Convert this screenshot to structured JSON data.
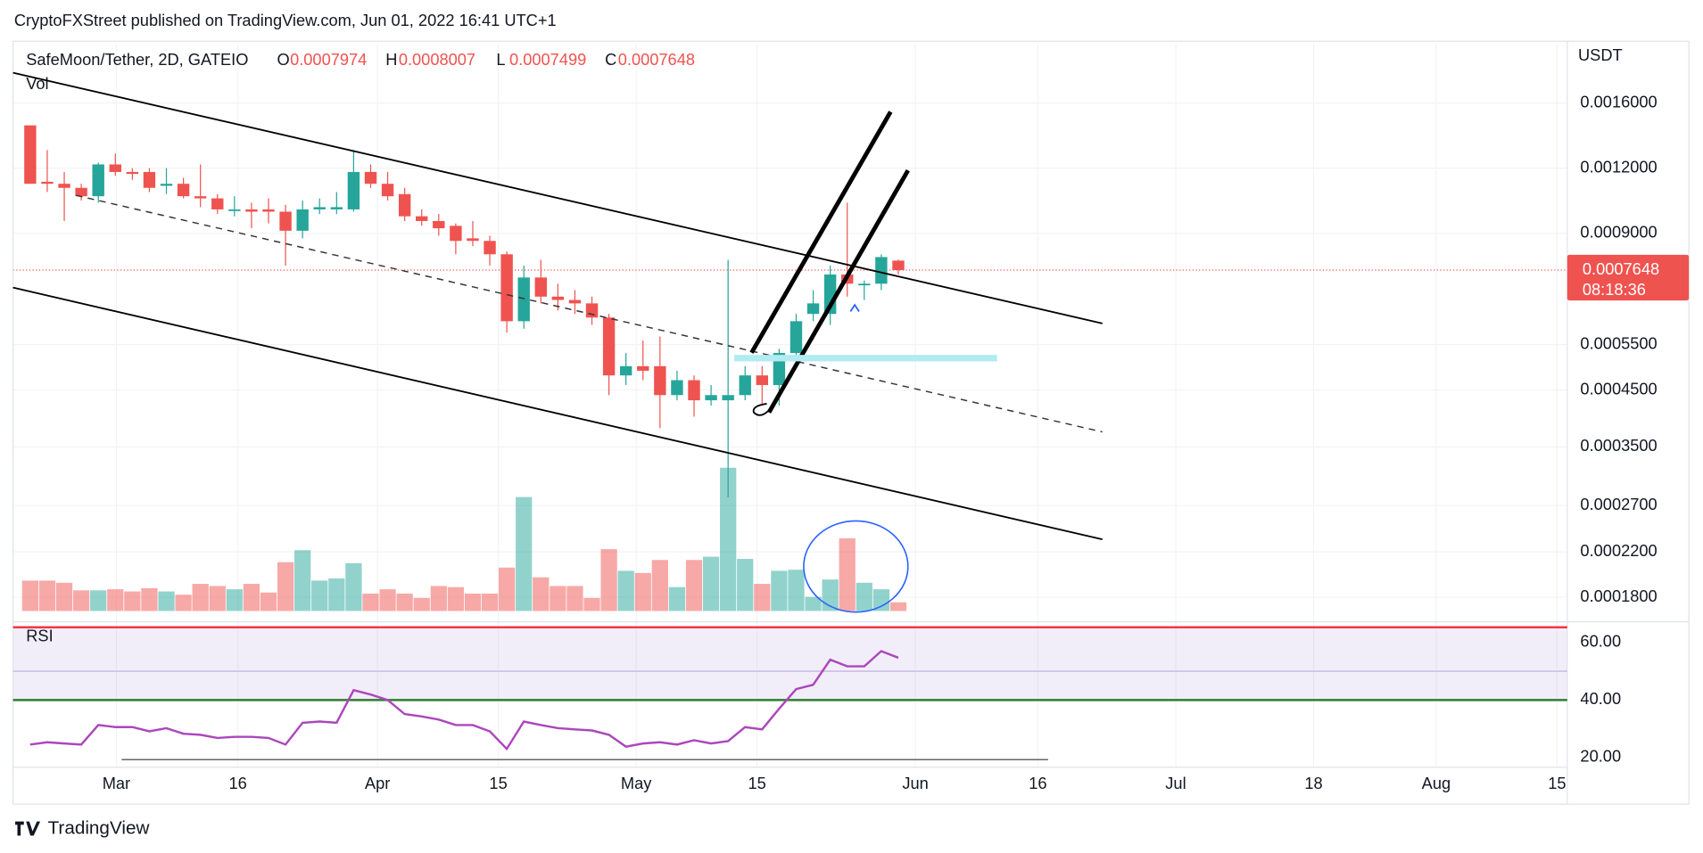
{
  "header": {
    "text": "CryptoFXStreet published on TradingView.com, Jun 01, 2022 16:41 UTC+1"
  },
  "footer": {
    "brand": "TradingView"
  },
  "chart_data": {
    "type": "candlestick",
    "title": "SafeMoon/Tether, 2D, GATEIO",
    "ohlc_labels": [
      "O",
      "H",
      "L",
      "C"
    ],
    "up_color": "#26a69a",
    "down_color": "#ef5350",
    "open": [
      0.00145,
      0.00113,
      0.00112,
      0.0011,
      0.00106,
      0.00122,
      0.00118,
      0.00118,
      0.00111,
      0.00112,
      0.00106,
      0.00105,
      0.001,
      0.001,
      0.001,
      0.00099,
      0.00091,
      0.001,
      0.001,
      0.001,
      0.00118,
      0.00112,
      0.00107,
      0.00097,
      0.00095,
      0.00093,
      0.00088,
      0.00087,
      0.00082,
      0.00061,
      0.00074,
      0.00068,
      0.00067,
      0.00066,
      0.00062,
      0.00048,
      0.0005,
      0.0005,
      0.00044,
      0.00047,
      0.00043,
      0.00043,
      0.00044,
      0.00048,
      0.00046,
      0.00053,
      0.00063,
      0.00063,
      0.00075,
      0.00072,
      0.00072,
      0.0007974
    ],
    "high": [
      0.00145,
      0.0013,
      0.00118,
      0.00112,
      0.00123,
      0.00128,
      0.0012,
      0.0012,
      0.0012,
      0.00115,
      0.00122,
      0.00107,
      0.00106,
      0.00103,
      0.00105,
      0.00102,
      0.00104,
      0.00105,
      0.00108,
      0.0013,
      0.00122,
      0.00118,
      0.0011,
      0.001,
      0.00098,
      0.00094,
      0.00095,
      0.00089,
      0.00083,
      0.00078,
      0.0008,
      0.00072,
      0.0007,
      0.00068,
      0.00063,
      0.00053,
      0.00056,
      0.00057,
      0.00049,
      0.00048,
      0.00046,
      0.0008,
      0.0005,
      0.0005,
      0.00054,
      0.00063,
      0.0007,
      0.00078,
      0.00103,
      0.00073,
      0.00082,
      0.0008007
    ],
    "low": [
      0.00112,
      0.00108,
      0.00095,
      0.00104,
      0.00103,
      0.00116,
      0.00114,
      0.00108,
      0.00107,
      0.00105,
      0.00101,
      0.00098,
      0.00097,
      0.00092,
      0.00094,
      0.00078,
      0.00088,
      0.00098,
      0.00098,
      0.00099,
      0.0011,
      0.00104,
      0.00095,
      0.00093,
      0.00089,
      0.00082,
      0.00085,
      0.00078,
      0.00058,
      0.00059,
      0.00066,
      0.00064,
      0.00063,
      0.0006,
      0.00044,
      0.00046,
      0.00047,
      0.00038,
      0.00043,
      0.0004,
      0.00042,
      0.00028,
      0.00043,
      0.00042,
      0.00042,
      0.00052,
      0.00061,
      0.0006,
      0.00068,
      0.00067,
      0.0007,
      0.0007499
    ],
    "close": [
      0.00112,
      0.00112,
      0.0011,
      0.00106,
      0.00122,
      0.00118,
      0.00117,
      0.0011,
      0.00112,
      0.00106,
      0.00105,
      0.001,
      0.001,
      0.00099,
      0.00099,
      0.00091,
      0.001,
      0.00101,
      0.00101,
      0.00118,
      0.00112,
      0.00106,
      0.00097,
      0.00095,
      0.00092,
      0.00087,
      0.00087,
      0.00082,
      0.00061,
      0.00074,
      0.00068,
      0.00067,
      0.00066,
      0.00062,
      0.00048,
      0.0005,
      0.00049,
      0.00044,
      0.00047,
      0.00043,
      0.00044,
      0.00044,
      0.00048,
      0.00046,
      0.00053,
      0.00061,
      0.00066,
      0.00075,
      0.00072,
      0.00072,
      0.00081,
      0.0007648
    ],
    "volume_label": "Vol",
    "volume": [
      28,
      28,
      26,
      19,
      19,
      20,
      18,
      21,
      18,
      15,
      25,
      23,
      20,
      25,
      17,
      45,
      56,
      28,
      30,
      44,
      16,
      20,
      16,
      12,
      23,
      22,
      16,
      16,
      40,
      105,
      31,
      23,
      23,
      12,
      57,
      37,
      35,
      47,
      22,
      47,
      50,
      132,
      48,
      25,
      37,
      38,
      13,
      29,
      67,
      26,
      20,
      8
    ],
    "log_scale": true,
    "y_axis_label": "USDT",
    "ylim": [
      0.0001694,
      0.002083
    ],
    "yticks": [
      {
        "value": 0.0016,
        "label": "0.0016000"
      },
      {
        "value": 0.0012,
        "label": "0.0012000"
      },
      {
        "value": 0.0009,
        "label": "0.0009000"
      },
      {
        "value": 0.00055,
        "label": "0.0005500"
      },
      {
        "value": 0.00045,
        "label": "0.0004500"
      },
      {
        "value": 0.00035,
        "label": "0.0003500"
      },
      {
        "value": 0.00027,
        "label": "0.0002700"
      },
      {
        "value": 0.00022,
        "label": "0.0002200"
      },
      {
        "value": 0.00018,
        "label": "0.0001800"
      }
    ],
    "countdown": "08:18:36",
    "xlim": [
      -1.01,
      90.3
    ],
    "xticks": [
      {
        "value": 5.06,
        "label": "Mar"
      },
      {
        "value": 12.2,
        "label": "16"
      },
      {
        "value": 20.4,
        "label": "Apr"
      },
      {
        "value": 27.5,
        "label": "15"
      },
      {
        "value": 35.6,
        "label": "May"
      },
      {
        "value": 42.7,
        "label": "15"
      },
      {
        "value": 52,
        "label": "Jun"
      },
      {
        "value": 59.2,
        "label": "16"
      },
      {
        "value": 67.3,
        "label": "Jul"
      },
      {
        "value": 75.4,
        "label": "18"
      },
      {
        "value": 82.6,
        "label": "Aug"
      },
      {
        "value": 89.7,
        "label": "15"
      }
    ],
    "rsi": {
      "label": "RSI",
      "color": "#ab47bc",
      "values": [
        24.5,
        25.3,
        24.9,
        24.5,
        31.3,
        30.6,
        30.6,
        29.1,
        30.2,
        28.3,
        27.9,
        26.8,
        27.2,
        27.2,
        26.8,
        24.5,
        32.1,
        32.5,
        32.1,
        43.4,
        41.9,
        40,
        35.1,
        34.3,
        33.2,
        31.3,
        31.3,
        29.1,
        23,
        32.5,
        31.3,
        30.2,
        29.8,
        29.4,
        27.9,
        23.8,
        24.9,
        25.3,
        24.5,
        26,
        24.9,
        25.7,
        30.6,
        29.8,
        37,
        43.8,
        45.3,
        54,
        51.7,
        51.7,
        57,
        54.7
      ],
      "ylim": [
        17,
        65.3
      ],
      "upper_band": 65.3,
      "middle_band": 50,
      "lower_band": 40,
      "yticks": [
        {
          "value": 60,
          "label": "60.00"
        },
        {
          "value": 40,
          "label": "40.00"
        },
        {
          "value": 20,
          "label": "20.00"
        }
      ]
    }
  }
}
